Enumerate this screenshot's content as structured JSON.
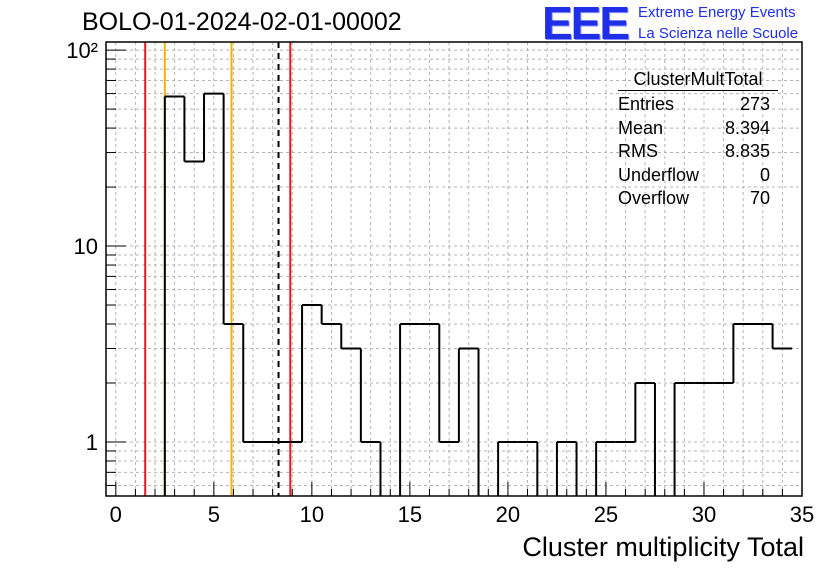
{
  "header": {
    "title": "BOLO-01-2024-02-01-00002",
    "logo": "EEE",
    "logo_line1": "Extreme Energy Events",
    "logo_line2": "La Scienza nelle Scuole"
  },
  "stats": {
    "title": "ClusterMultTotal",
    "rows": [
      {
        "label": "Entries",
        "value": "273"
      },
      {
        "label": "Mean",
        "value": "8.394"
      },
      {
        "label": "RMS",
        "value": "8.835"
      },
      {
        "label": "Underflow",
        "value": "0"
      },
      {
        "label": "Overflow",
        "value": "70"
      }
    ]
  },
  "chart_data": {
    "type": "histogram",
    "xlabel": "Cluster multiplicity Total",
    "ylabel": "",
    "xlim": [
      -0.5,
      35
    ],
    "ylim": [
      0.53,
      110
    ],
    "yscale": "log",
    "grid": true,
    "x_ticks": [
      0,
      5,
      10,
      15,
      20,
      25,
      30,
      35
    ],
    "y_ticks": [
      {
        "value": 1,
        "label": "1"
      },
      {
        "value": 10,
        "label": "10"
      },
      {
        "value": 100,
        "label": "10²"
      }
    ],
    "bin_edges_start": 1.5,
    "bin_width": 1,
    "values": [
      0,
      58,
      27,
      60,
      4,
      1,
      1,
      1,
      5,
      4,
      3,
      1,
      0,
      4,
      4,
      1,
      3,
      0,
      1,
      1,
      0,
      1,
      0,
      1,
      1,
      2,
      0,
      2,
      2,
      2,
      4,
      4,
      3
    ],
    "markers": [
      {
        "x": 1.5,
        "style": "red"
      },
      {
        "x": 2.5,
        "style": "orange"
      },
      {
        "x": 5.9,
        "style": "orange"
      },
      {
        "x": 8.3,
        "style": "black-dashed"
      },
      {
        "x": 8.9,
        "style": "red"
      }
    ],
    "colors": {
      "line": "#000000",
      "red": "#e8181c",
      "orange": "#f2b400",
      "grid": "#b4b4b4"
    }
  }
}
